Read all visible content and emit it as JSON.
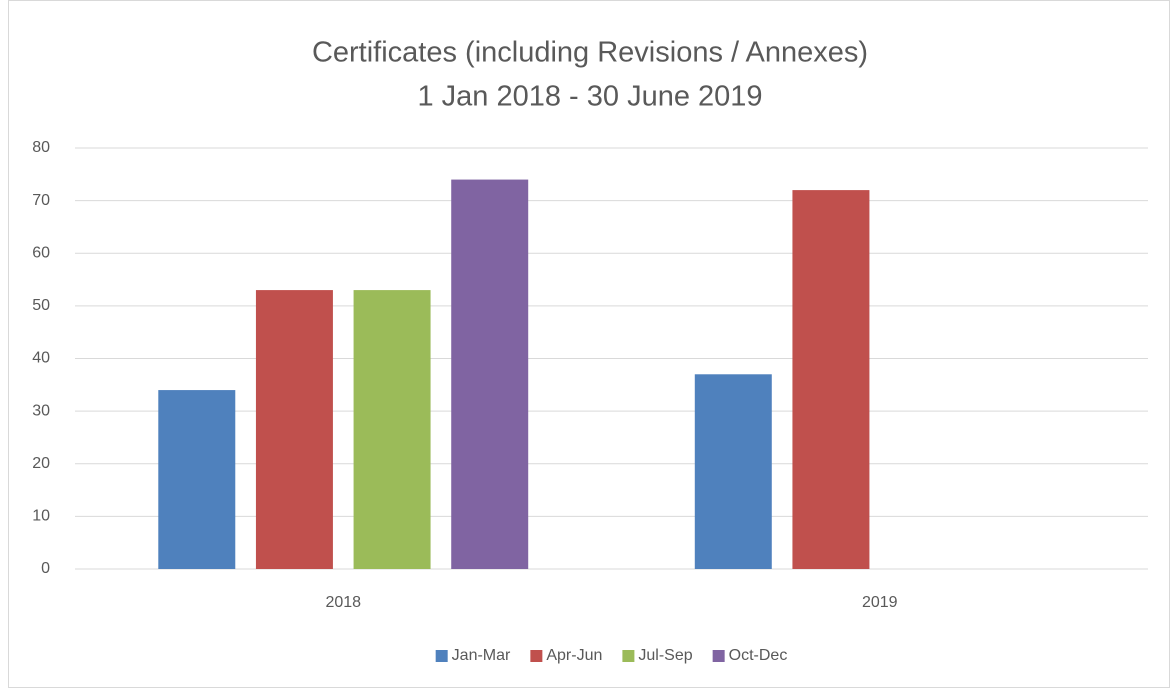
{
  "chart_data": {
    "type": "bar",
    "title": "Certificates (including Revisions / Annexes)",
    "subtitle": "1 Jan 2018 - 30 June 2019",
    "categories": [
      "2018",
      "2019"
    ],
    "series": [
      {
        "name": "Jan-Mar",
        "color": "#4f81bd",
        "values": [
          34,
          37
        ]
      },
      {
        "name": "Apr-Jun",
        "color": "#c0504d",
        "values": [
          53,
          72
        ]
      },
      {
        "name": "Jul-Sep",
        "color": "#9bbb59",
        "values": [
          53,
          null
        ]
      },
      {
        "name": "Oct-Dec",
        "color": "#8064a2",
        "values": [
          74,
          null
        ]
      }
    ],
    "ylim": [
      0,
      80
    ],
    "yticks": [
      0,
      10,
      20,
      30,
      40,
      50,
      60,
      70,
      80
    ],
    "grid": true,
    "legend": "bottom"
  }
}
